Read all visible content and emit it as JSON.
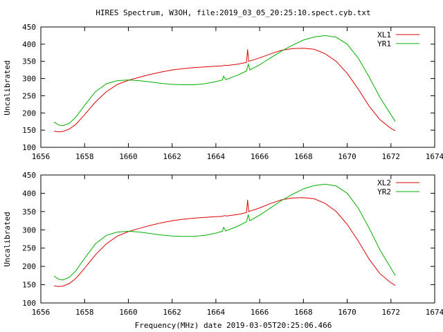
{
  "title": "HIRES Spectrum, W3OH, file:2019_03_05_20:25:10.spect.cyb.txt",
  "footer_xlabel": "Frequency(MHz) date 2019-03-05T20:25:06.466",
  "colors": {
    "red": "#dd0000",
    "green": "#00b000",
    "axes": "#000000"
  },
  "chart_data": [
    {
      "type": "line",
      "ylabel": "Uncalibrated",
      "xlim": [
        1656,
        1674
      ],
      "ylim": [
        100,
        450
      ],
      "xticks": [
        1656,
        1658,
        1660,
        1662,
        1664,
        1666,
        1668,
        1670,
        1672,
        1674
      ],
      "yticks": [
        100,
        150,
        200,
        250,
        300,
        350,
        400,
        450
      ],
      "legend_position": "top-right",
      "series": [
        {
          "name": "XL1",
          "color": "#dd0000",
          "x": [
            1656.6,
            1656.8,
            1657.0,
            1657.3,
            1657.6,
            1658.0,
            1658.5,
            1659.0,
            1659.5,
            1660.0,
            1660.5,
            1661.0,
            1661.5,
            1662.0,
            1662.5,
            1663.0,
            1663.5,
            1664.0,
            1664.3,
            1664.4,
            1664.5,
            1665.0,
            1665.4,
            1665.45,
            1665.5,
            1665.6,
            1666.0,
            1666.5,
            1667.0,
            1667.5,
            1668.0,
            1668.5,
            1669.0,
            1669.5,
            1670.0,
            1670.5,
            1671.0,
            1671.5,
            1672.0,
            1672.2
          ],
          "y": [
            147,
            145,
            146,
            153,
            167,
            195,
            232,
            262,
            283,
            295,
            304,
            312,
            319,
            325,
            329,
            332,
            334,
            336,
            337,
            339,
            338,
            342,
            347,
            385,
            350,
            352,
            360,
            372,
            382,
            387,
            388,
            385,
            372,
            350,
            315,
            270,
            220,
            180,
            155,
            148
          ]
        },
        {
          "name": "YR1",
          "color": "#00b000",
          "x": [
            1656.6,
            1656.8,
            1657.0,
            1657.3,
            1657.6,
            1658.0,
            1658.5,
            1659.0,
            1659.5,
            1660.0,
            1660.5,
            1661.0,
            1661.5,
            1662.0,
            1662.5,
            1663.0,
            1663.5,
            1664.0,
            1664.3,
            1664.35,
            1664.45,
            1665.0,
            1665.4,
            1665.48,
            1665.55,
            1666.0,
            1666.5,
            1667.0,
            1667.5,
            1668.0,
            1668.5,
            1669.0,
            1669.5,
            1670.0,
            1670.5,
            1671.0,
            1671.5,
            1672.0,
            1672.2
          ],
          "y": [
            174,
            165,
            163,
            170,
            188,
            222,
            262,
            285,
            294,
            296,
            294,
            290,
            286,
            283,
            282,
            282,
            285,
            291,
            296,
            307,
            297,
            310,
            322,
            342,
            325,
            340,
            360,
            380,
            397,
            412,
            421,
            425,
            420,
            400,
            360,
            305,
            245,
            195,
            175
          ]
        }
      ]
    },
    {
      "type": "line",
      "ylabel": "Uncalibrated",
      "xlim": [
        1656,
        1674
      ],
      "ylim": [
        100,
        450
      ],
      "xticks": [
        1656,
        1658,
        1660,
        1662,
        1664,
        1666,
        1668,
        1670,
        1672,
        1674
      ],
      "yticks": [
        100,
        150,
        200,
        250,
        300,
        350,
        400,
        450
      ],
      "legend_position": "top-right",
      "series": [
        {
          "name": "XL2",
          "color": "#dd0000",
          "x": [
            1656.6,
            1656.8,
            1657.0,
            1657.3,
            1657.6,
            1658.0,
            1658.5,
            1659.0,
            1659.5,
            1660.0,
            1660.5,
            1661.0,
            1661.5,
            1662.0,
            1662.5,
            1663.0,
            1663.5,
            1664.0,
            1664.3,
            1664.4,
            1664.5,
            1665.0,
            1665.4,
            1665.45,
            1665.5,
            1665.6,
            1666.0,
            1666.5,
            1667.0,
            1667.5,
            1668.0,
            1668.5,
            1669.0,
            1669.5,
            1670.0,
            1670.5,
            1671.0,
            1671.5,
            1672.0,
            1672.2
          ],
          "y": [
            147,
            145,
            146,
            153,
            167,
            195,
            232,
            262,
            283,
            295,
            304,
            312,
            319,
            325,
            329,
            332,
            334,
            336,
            337,
            339,
            338,
            342,
            347,
            382,
            350,
            352,
            360,
            372,
            382,
            387,
            388,
            385,
            372,
            350,
            315,
            270,
            220,
            180,
            155,
            148
          ]
        },
        {
          "name": "YR2",
          "color": "#00b000",
          "x": [
            1656.6,
            1656.8,
            1657.0,
            1657.3,
            1657.6,
            1658.0,
            1658.5,
            1659.0,
            1659.5,
            1660.0,
            1660.5,
            1661.0,
            1661.5,
            1662.0,
            1662.5,
            1663.0,
            1663.5,
            1664.0,
            1664.3,
            1664.35,
            1664.45,
            1665.0,
            1665.4,
            1665.48,
            1665.55,
            1666.0,
            1666.5,
            1667.0,
            1667.5,
            1668.0,
            1668.5,
            1669.0,
            1669.5,
            1670.0,
            1670.5,
            1671.0,
            1671.5,
            1672.0,
            1672.2
          ],
          "y": [
            174,
            165,
            163,
            170,
            188,
            222,
            262,
            285,
            294,
            296,
            294,
            290,
            286,
            283,
            282,
            282,
            285,
            291,
            296,
            307,
            297,
            310,
            322,
            342,
            325,
            340,
            360,
            380,
            397,
            412,
            421,
            425,
            420,
            400,
            360,
            305,
            245,
            195,
            175
          ]
        }
      ]
    }
  ]
}
